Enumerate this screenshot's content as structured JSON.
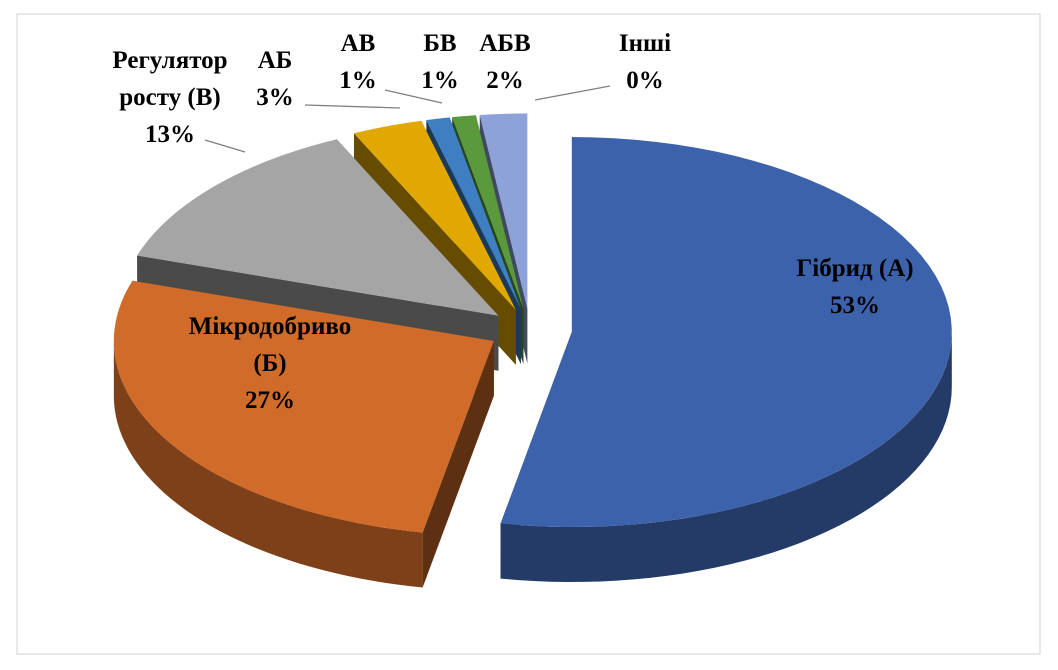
{
  "chart_data": {
    "type": "pie3d",
    "categories": [
      "Гібрид (А)",
      "Мікродобриво (Б)",
      "Регулятор росту (В)",
      "АБ",
      "АВ",
      "БВ",
      "АБВ",
      "Інші"
    ],
    "values": [
      53,
      27,
      13,
      3,
      1,
      1,
      2,
      0
    ],
    "value_labels": [
      "53%",
      "27%",
      "13%",
      "3%",
      "1%",
      "1%",
      "2%",
      "0%"
    ],
    "colors": [
      "#3c62ac",
      "#d06b29",
      "#a5a5a5",
      "#e0a800",
      "#3e7fc1",
      "#5a9a3c",
      "#8da2d9",
      "#f4a58a"
    ],
    "exploded": true
  }
}
